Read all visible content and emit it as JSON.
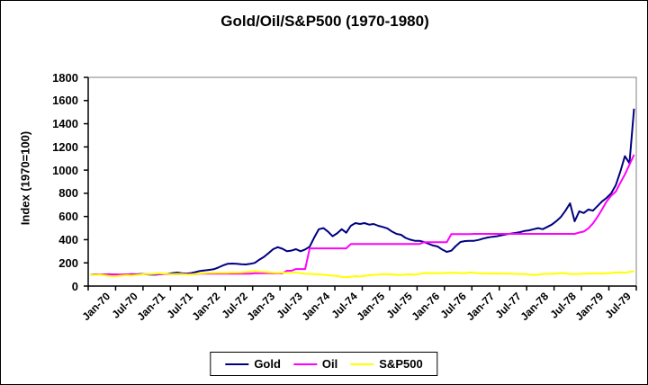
{
  "window": {
    "background": "#FFFFFF",
    "border_color": "#000000"
  },
  "chart_data": {
    "type": "line",
    "title": "Gold/Oil/S&P500 (1970-1980)",
    "xlabel": "",
    "ylabel": "Index (1970=100)",
    "ylim": [
      0,
      1800
    ],
    "ytick_step": 200,
    "ytick_labels": [
      "0",
      "200",
      "400",
      "600",
      "800",
      "1000",
      "1200",
      "1400",
      "1600",
      "1800"
    ],
    "x_tick_labels": [
      "Jan-70",
      "Jul-70",
      "Jan-71",
      "Jul-71",
      "Jan-72",
      "Jul-72",
      "Jan-73",
      "Jul-73",
      "Jan-74",
      "Jul-74",
      "Jan-75",
      "Jul-75",
      "Jan-76",
      "Jul-76",
      "Jan-77",
      "Jul-77",
      "Jan-78",
      "Jul-78",
      "Jan-79",
      "Jul-79"
    ],
    "x_unit": "monthly, Jan-70 through Dec-79, axis ticks every 6 months",
    "grid": false,
    "legend_position": "bottom",
    "plot_border_color": "#808080",
    "axis_color": "#000000",
    "series": [
      {
        "name": "Gold",
        "color": "#000080",
        "values": [
          100,
          101,
          99,
          100,
          102,
          100,
          98,
          97,
          100,
          103,
          102,
          104,
          102,
          99,
          98,
          101,
          104,
          107,
          112,
          116,
          111,
          108,
          112,
          120,
          130,
          135,
          140,
          145,
          160,
          178,
          192,
          194,
          192,
          188,
          186,
          192,
          200,
          228,
          252,
          285,
          318,
          335,
          322,
          300,
          306,
          318,
          300,
          316,
          340,
          420,
          490,
          500,
          470,
          430,
          455,
          490,
          460,
          520,
          543,
          535,
          543,
          530,
          535,
          520,
          510,
          497,
          470,
          450,
          442,
          415,
          400,
          390,
          390,
          380,
          365,
          350,
          341,
          315,
          295,
          305,
          345,
          380,
          388,
          390,
          390,
          398,
          410,
          419,
          425,
          430,
          438,
          446,
          452,
          458,
          465,
          475,
          480,
          490,
          500,
          490,
          510,
          530,
          560,
          597,
          650,
          714,
          559,
          645,
          630,
          660,
          650,
          690,
          730,
          760,
          800,
          870,
          985,
          1120,
          1060,
          1530
        ]
      },
      {
        "name": "Oil",
        "color": "#FF00FF",
        "values": [
          100,
          100,
          100,
          100,
          100,
          100,
          100,
          100,
          100,
          100,
          100,
          100,
          103,
          103,
          103,
          103,
          103,
          103,
          103,
          103,
          103,
          103,
          103,
          103,
          106,
          106,
          106,
          106,
          106,
          106,
          106,
          106,
          106,
          106,
          106,
          106,
          110,
          110,
          110,
          110,
          110,
          110,
          110,
          132,
          132,
          147,
          147,
          147,
          325,
          325,
          325,
          325,
          325,
          325,
          325,
          325,
          325,
          362,
          362,
          362,
          362,
          362,
          362,
          362,
          362,
          362,
          362,
          362,
          362,
          362,
          362,
          362,
          362,
          378,
          378,
          378,
          378,
          378,
          378,
          448,
          448,
          448,
          448,
          448,
          450,
          450,
          450,
          450,
          450,
          450,
          450,
          450,
          450,
          450,
          450,
          450,
          450,
          450,
          450,
          450,
          450,
          450,
          450,
          450,
          450,
          450,
          450,
          462,
          470,
          497,
          540,
          597,
          660,
          729,
          780,
          815,
          890,
          962,
          1047,
          1133
        ]
      },
      {
        "name": "S&P500",
        "color": "#FFFF00",
        "values": [
          100,
          96,
          98,
          93,
          88,
          84,
          86,
          90,
          93,
          90,
          94,
          99,
          103,
          104,
          107,
          110,
          107,
          105,
          102,
          105,
          104,
          100,
          99,
          105,
          109,
          111,
          113,
          113,
          115,
          114,
          114,
          117,
          116,
          117,
          121,
          125,
          129,
          124,
          122,
          119,
          116,
          114,
          117,
          113,
          115,
          118,
          111,
          107,
          105,
          103,
          101,
          97,
          93,
          90,
          86,
          80,
          75,
          80,
          85,
          82,
          88,
          93,
          96,
          99,
          101,
          103,
          100,
          98,
          95,
          100,
          102,
          98,
          105,
          110,
          112,
          111,
          110,
          112,
          113,
          113,
          114,
          112,
          111,
          117,
          113,
          110,
          109,
          109,
          108,
          109,
          108,
          107,
          107,
          105,
          104,
          104,
          99,
          97,
          98,
          104,
          106,
          105,
          108,
          112,
          111,
          103,
          104,
          105,
          109,
          106,
          109,
          110,
          108,
          111,
          112,
          117,
          118,
          115,
          122,
          128
        ]
      }
    ]
  }
}
